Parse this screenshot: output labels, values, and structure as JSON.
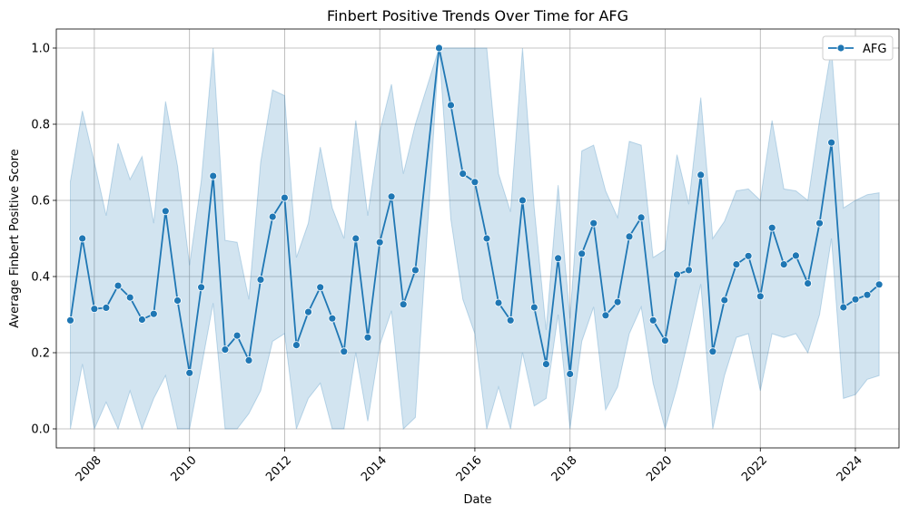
{
  "chart_data": {
    "type": "line",
    "title": "Finbert Positive Trends Over Time for AFG",
    "xlabel": "Date",
    "ylabel": "Average Finbert Positive Score",
    "xlim": [
      "2007-03-15",
      "2024-12-01"
    ],
    "ylim": [
      -0.05,
      1.05
    ],
    "x_ticks": [
      "2008",
      "2010",
      "2012",
      "2014",
      "2016",
      "2018",
      "2020",
      "2022",
      "2024"
    ],
    "y_ticks": [
      "0.0",
      "0.2",
      "0.4",
      "0.6",
      "0.8",
      "1.0"
    ],
    "grid": true,
    "legend_position": "top-right",
    "series": [
      {
        "name": "AFG",
        "color": "#1f77b4",
        "band_color": "#1f77b4",
        "x": [
          "2007-07-01",
          "2007-10-01",
          "2008-01-01",
          "2008-04-01",
          "2008-07-01",
          "2008-10-01",
          "2009-01-01",
          "2009-04-01",
          "2009-07-01",
          "2009-10-01",
          "2010-01-01",
          "2010-04-01",
          "2010-07-01",
          "2010-10-01",
          "2011-01-01",
          "2011-04-01",
          "2011-07-01",
          "2011-10-01",
          "2012-01-01",
          "2012-04-01",
          "2012-07-01",
          "2012-10-01",
          "2013-01-01",
          "2013-04-01",
          "2013-07-01",
          "2013-10-01",
          "2014-01-01",
          "2014-04-01",
          "2014-07-01",
          "2014-10-01",
          "2015-04-01",
          "2015-07-01",
          "2015-10-01",
          "2016-01-01",
          "2016-04-01",
          "2016-07-01",
          "2016-10-01",
          "2017-01-01",
          "2017-04-01",
          "2017-07-01",
          "2017-10-01",
          "2018-01-01",
          "2018-04-01",
          "2018-07-01",
          "2018-10-01",
          "2019-01-01",
          "2019-04-01",
          "2019-07-01",
          "2019-10-01",
          "2020-01-01",
          "2020-04-01",
          "2020-07-01",
          "2020-10-01",
          "2021-01-01",
          "2021-04-01",
          "2021-07-01",
          "2021-10-01",
          "2022-01-01",
          "2022-04-01",
          "2022-07-01",
          "2022-10-01",
          "2023-01-01",
          "2023-04-01",
          "2023-07-01",
          "2023-10-01",
          "2024-01-01",
          "2024-04-01",
          "2024-07-01"
        ],
        "y": [
          0.285,
          0.5,
          0.315,
          0.318,
          0.376,
          0.345,
          0.287,
          0.302,
          0.572,
          0.337,
          0.147,
          0.372,
          0.664,
          0.208,
          0.245,
          0.18,
          0.392,
          0.557,
          0.607,
          0.22,
          0.307,
          0.372,
          0.29,
          0.203,
          0.5,
          0.24,
          0.49,
          0.61,
          0.327,
          0.417,
          1.0,
          0.85,
          0.67,
          0.648,
          0.5,
          0.331,
          0.285,
          0.6,
          0.319,
          0.17,
          0.448,
          0.144,
          0.46,
          0.54,
          0.298,
          0.333,
          0.505,
          0.555,
          0.285,
          0.232,
          0.405,
          0.417,
          0.667,
          0.203,
          0.338,
          0.432,
          0.454,
          0.348,
          0.528,
          0.432,
          0.455,
          0.382,
          0.54,
          0.752,
          0.319,
          0.34,
          0.352,
          0.379
        ],
        "ci_low": [
          0.0,
          0.17,
          0.0,
          0.07,
          0.0,
          0.1,
          0.0,
          0.08,
          0.14,
          0.0,
          0.0,
          0.16,
          0.33,
          0.0,
          0.0,
          0.04,
          0.1,
          0.23,
          0.25,
          0.0,
          0.08,
          0.12,
          0.0,
          0.0,
          0.2,
          0.02,
          0.22,
          0.31,
          0.0,
          0.03,
          1.0,
          0.55,
          0.34,
          0.25,
          0.0,
          0.11,
          0.0,
          0.2,
          0.06,
          0.08,
          0.3,
          0.0,
          0.23,
          0.32,
          0.05,
          0.11,
          0.25,
          0.32,
          0.12,
          0.0,
          0.11,
          0.24,
          0.38,
          0.0,
          0.14,
          0.24,
          0.25,
          0.1,
          0.25,
          0.24,
          0.25,
          0.2,
          0.3,
          0.5,
          0.08,
          0.09,
          0.13,
          0.14
        ],
        "ci_high": [
          0.65,
          0.835,
          0.7,
          0.56,
          0.75,
          0.655,
          0.715,
          0.54,
          0.86,
          0.69,
          0.43,
          0.65,
          1.0,
          0.495,
          0.49,
          0.34,
          0.7,
          0.89,
          0.875,
          0.45,
          0.54,
          0.74,
          0.58,
          0.5,
          0.81,
          0.56,
          0.78,
          0.905,
          0.67,
          0.8,
          1.0,
          1.0,
          1.0,
          1.0,
          1.0,
          0.67,
          0.57,
          1.0,
          0.58,
          0.26,
          0.64,
          0.29,
          0.73,
          0.745,
          0.625,
          0.555,
          0.755,
          0.745,
          0.45,
          0.47,
          0.72,
          0.59,
          0.87,
          0.5,
          0.545,
          0.625,
          0.63,
          0.6,
          0.81,
          0.63,
          0.625,
          0.6,
          0.81,
          1.0,
          0.58,
          0.6,
          0.615,
          0.62
        ]
      }
    ]
  }
}
